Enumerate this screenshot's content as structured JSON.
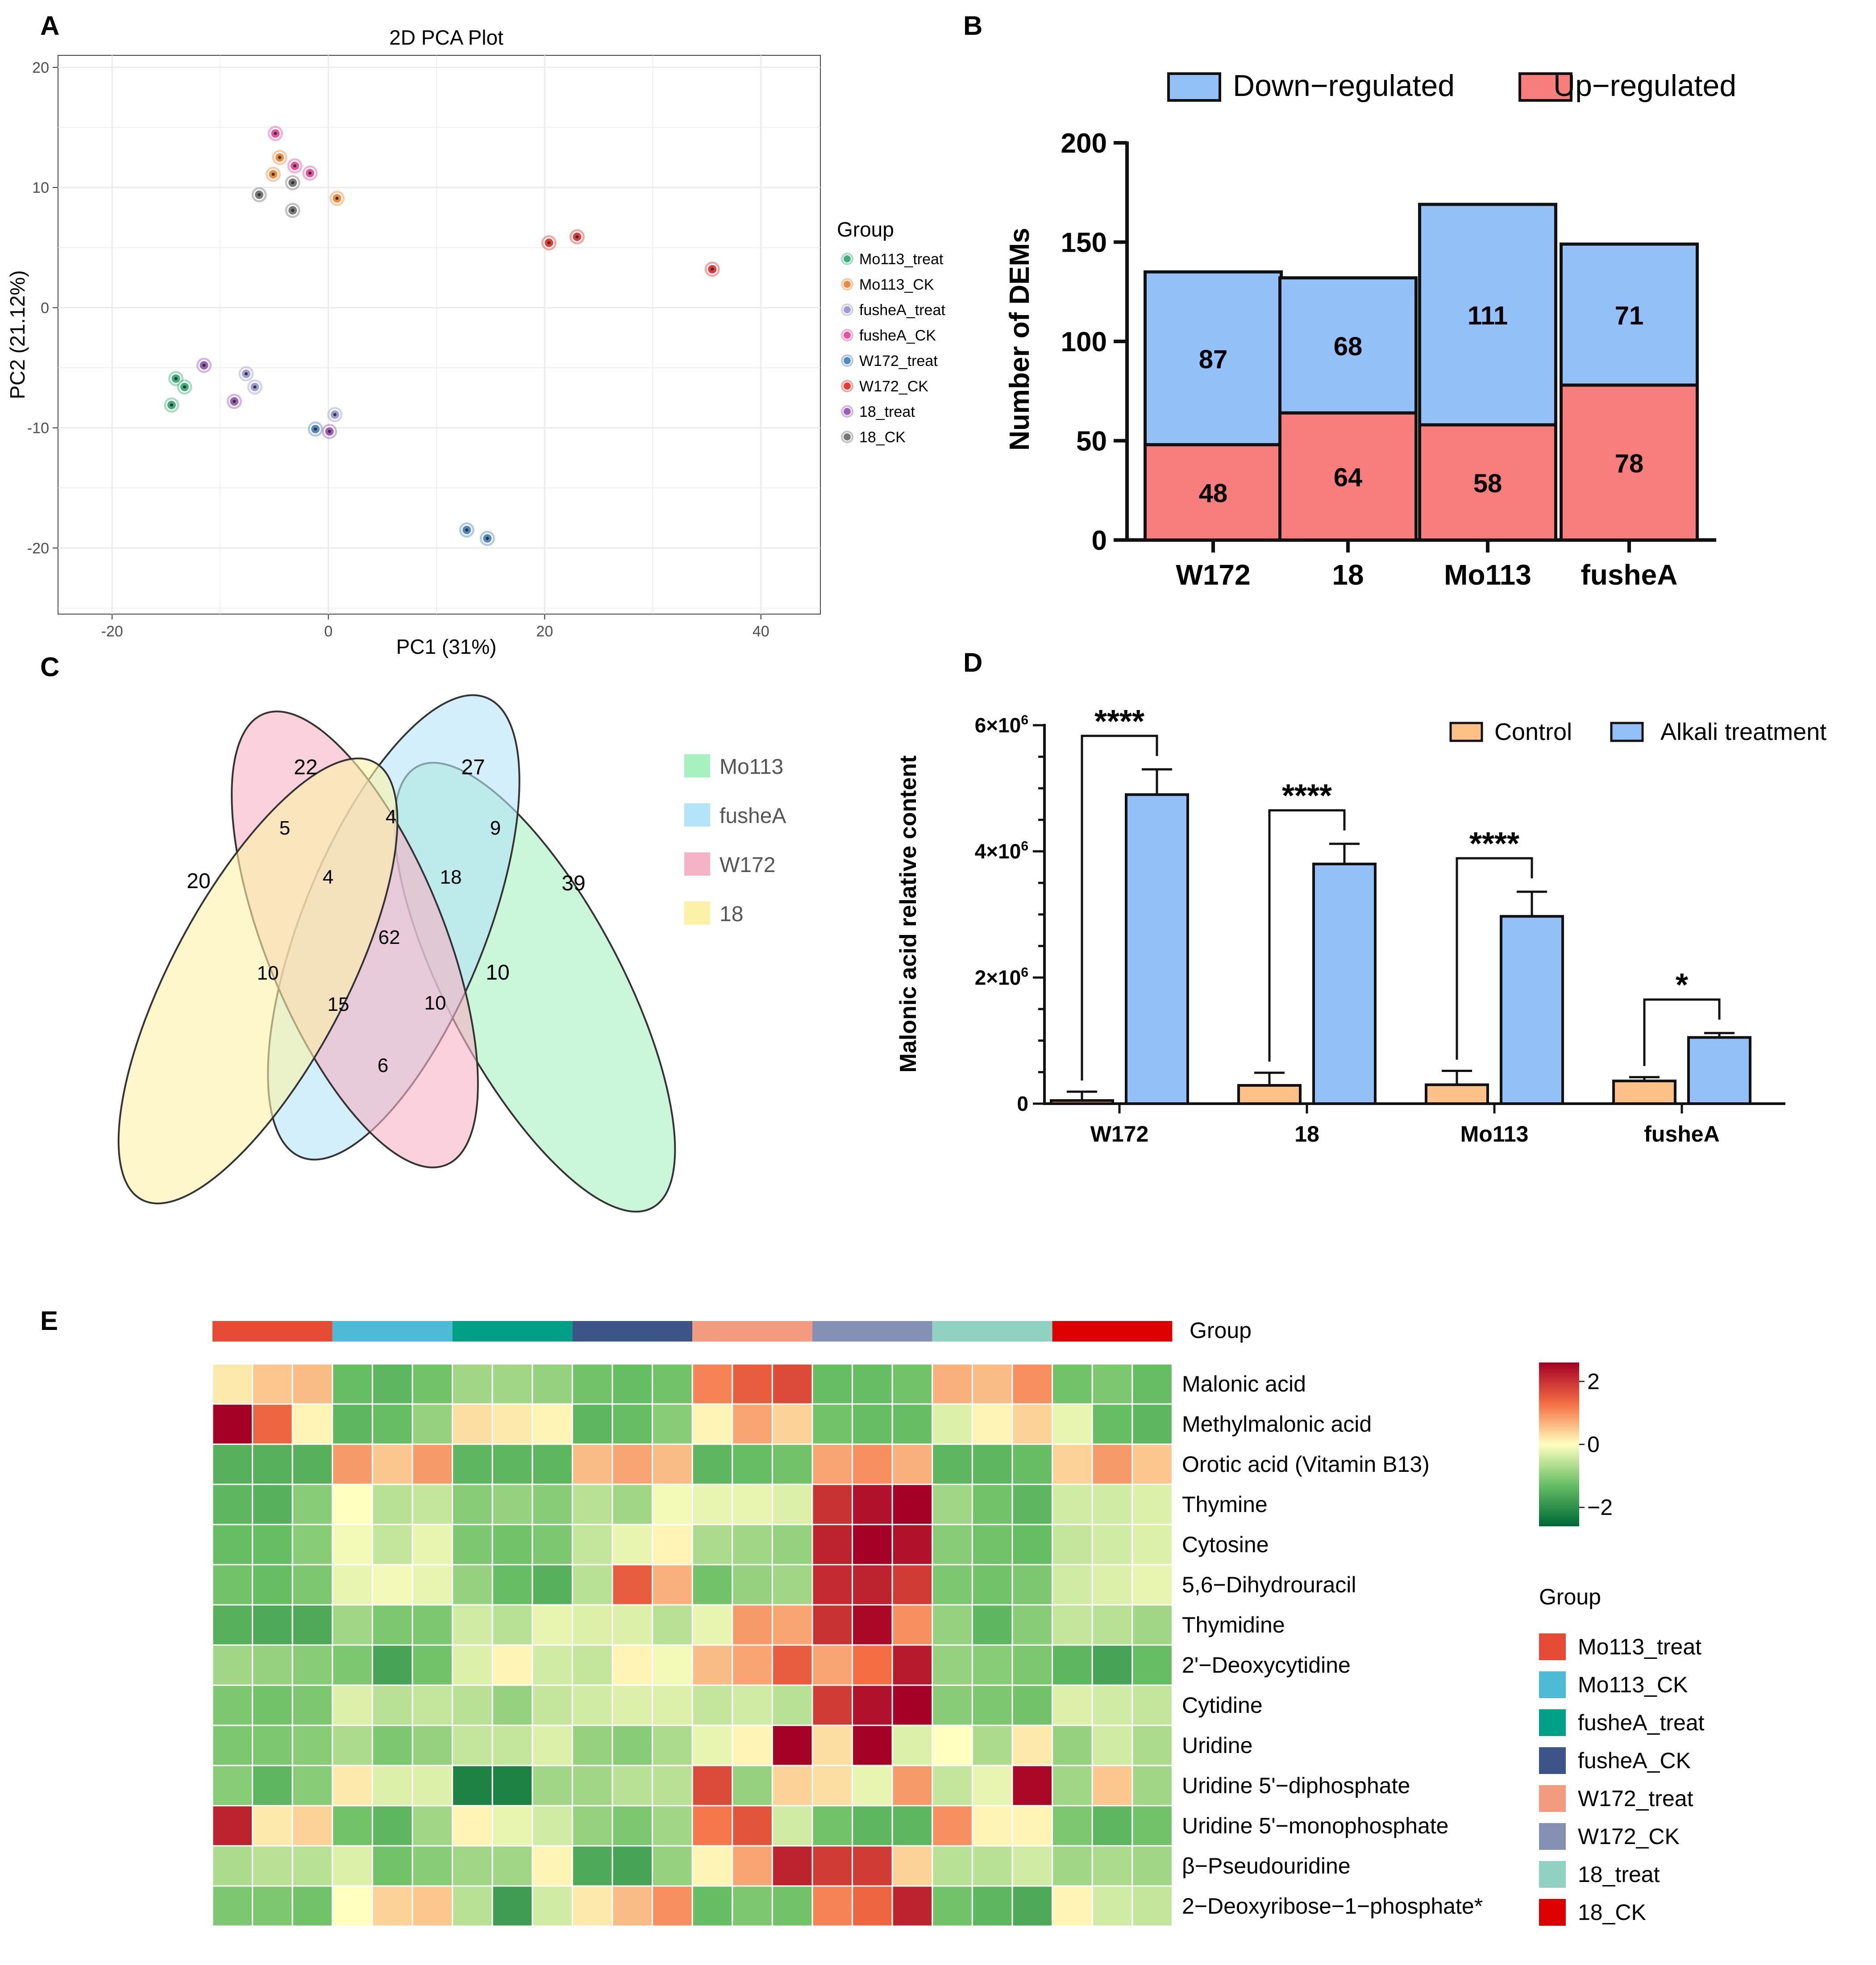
{
  "panel_labels": {
    "a": "A",
    "b": "B",
    "c": "C",
    "d": "D",
    "e": "E"
  },
  "chart_data": [
    {
      "id": "A",
      "type": "scatter",
      "title": "2D PCA Plot",
      "xlabel": "PC1 (31%)",
      "ylabel": "PC2 (21.12%)",
      "xlim": [
        -25,
        45.5
      ],
      "ylim": [
        -25.5,
        21
      ],
      "xticks": [
        -20,
        0,
        20,
        40
      ],
      "yticks": [
        -20,
        -10,
        0,
        10,
        20
      ],
      "grid": true,
      "legend_title": "Group",
      "legend_position": "right",
      "series": [
        {
          "name": "Mo113_treat",
          "color": "#3dae7c",
          "points": [
            [
              -14.1,
              -5.9
            ],
            [
              -13.3,
              -6.6
            ],
            [
              -14.5,
              -8.1
            ]
          ]
        },
        {
          "name": "Mo113_CK",
          "color": "#ef8a3c",
          "points": [
            [
              -4.5,
              12.5
            ],
            [
              -5.1,
              11.1
            ],
            [
              0.8,
              9.1
            ]
          ]
        },
        {
          "name": "fusheA_treat",
          "color": "#9d9ad6",
          "points": [
            [
              -7.6,
              -5.5
            ],
            [
              -6.8,
              -6.6
            ],
            [
              0.6,
              -8.9
            ]
          ]
        },
        {
          "name": "fusheA_CK",
          "color": "#e9529b",
          "points": [
            [
              -4.9,
              14.5
            ],
            [
              -3.1,
              11.8
            ],
            [
              -1.7,
              11.2
            ]
          ]
        },
        {
          "name": "W172_treat",
          "color": "#4e89c2",
          "points": [
            [
              -1.2,
              -10.1
            ],
            [
              12.8,
              -18.5
            ],
            [
              14.7,
              -19.2
            ]
          ]
        },
        {
          "name": "W172_CK",
          "color": "#e33b34",
          "points": [
            [
              20.4,
              5.4
            ],
            [
              23.0,
              5.9
            ],
            [
              35.5,
              3.2
            ]
          ]
        },
        {
          "name": "18_treat",
          "color": "#9b5db8",
          "points": [
            [
              -11.5,
              -4.8
            ],
            [
              -8.7,
              -7.8
            ],
            [
              0.1,
              -10.3
            ]
          ]
        },
        {
          "name": "18_CK",
          "color": "#777777",
          "points": [
            [
              -6.4,
              9.4
            ],
            [
              -3.3,
              10.4
            ],
            [
              -3.3,
              8.1
            ]
          ]
        }
      ]
    },
    {
      "id": "B",
      "type": "bar",
      "stacked": true,
      "ylabel": "Number of DEMs",
      "ylim": [
        0,
        200
      ],
      "yticks": [
        0,
        50,
        100,
        150,
        200
      ],
      "categories": [
        "W172",
        "18",
        "Mo113",
        "fusheA"
      ],
      "legend_position": "top",
      "series": [
        {
          "name": "Up−regulated",
          "color": "#f87e7e",
          "values": [
            48,
            64,
            58,
            78
          ]
        },
        {
          "name": "Down−regulated",
          "color": "#93c0f7",
          "values": [
            87,
            68,
            111,
            71
          ]
        }
      ],
      "legend_order": [
        "Down−regulated",
        "Up−regulated"
      ]
    },
    {
      "id": "C",
      "type": "venn",
      "sets": [
        {
          "name": "Mo113",
          "color": "#a7f0c0"
        },
        {
          "name": "fusheA",
          "color": "#b4e4f8"
        },
        {
          "name": "W172",
          "color": "#f6b3c7"
        },
        {
          "name": "18",
          "color": "#fbf2a8"
        }
      ],
      "regions": [
        {
          "sets": [
            "18"
          ],
          "value": 20
        },
        {
          "sets": [
            "W172"
          ],
          "value": 22
        },
        {
          "sets": [
            "fusheA"
          ],
          "value": 27
        },
        {
          "sets": [
            "Mo113"
          ],
          "value": 39
        },
        {
          "sets": [
            "18",
            "W172"
          ],
          "value": 5
        },
        {
          "sets": [
            "W172",
            "fusheA"
          ],
          "value": 4
        },
        {
          "sets": [
            "fusheA",
            "Mo113"
          ],
          "value": 9
        },
        {
          "sets": [
            "18",
            "W172",
            "fusheA"
          ],
          "value": 4
        },
        {
          "sets": [
            "W172",
            "fusheA",
            "Mo113"
          ],
          "value": 18
        },
        {
          "sets": [
            "18",
            "W172",
            "fusheA",
            "Mo113"
          ],
          "value": 62
        },
        {
          "sets": [
            "18",
            "fusheA"
          ],
          "value": 10
        },
        {
          "sets": [
            "W172",
            "Mo113"
          ],
          "value": 10
        },
        {
          "sets": [
            "18",
            "fusheA",
            "Mo113"
          ],
          "value": 15
        },
        {
          "sets": [
            "18",
            "W172",
            "Mo113"
          ],
          "value": 10
        },
        {
          "sets": [
            "18",
            "Mo113"
          ],
          "value": 6
        }
      ]
    },
    {
      "id": "D",
      "type": "bar",
      "grouped": true,
      "ylabel": "Malonic acid relative content",
      "ylim": [
        0,
        6000000
      ],
      "ytick_labels": [
        {
          "value": 0,
          "base": "0",
          "exp": ""
        },
        {
          "value": 2000000,
          "base": "2×10",
          "exp": "6"
        },
        {
          "value": 4000000,
          "base": "4×10",
          "exp": "6"
        },
        {
          "value": 6000000,
          "base": "6×10",
          "exp": "6"
        }
      ],
      "categories": [
        "W172",
        "18",
        "Mo113",
        "fusheA"
      ],
      "legend_position": "top-right",
      "series": [
        {
          "name": "Control",
          "color": "#fdc187",
          "values": [
            50000,
            290000,
            300000,
            360000
          ],
          "errors": [
            140000,
            200000,
            220000,
            60000
          ]
        },
        {
          "name": "Alkali treatment",
          "color": "#93c0f7",
          "values": [
            4900000,
            3800000,
            2970000,
            1050000
          ],
          "errors": [
            400000,
            320000,
            390000,
            70000
          ]
        }
      ],
      "significance": [
        "****",
        "****",
        "****",
        "*"
      ]
    },
    {
      "id": "E",
      "type": "heatmap",
      "legend_title": "Group",
      "colorbar_ticks": [
        {
          "value": 2,
          "label": "2"
        },
        {
          "value": 0,
          "label": "0"
        },
        {
          "value": -2,
          "label": "−2"
        }
      ],
      "color_range": [
        -2.6,
        2.6
      ],
      "groups": [
        {
          "name": "Mo113_treat",
          "color": "#e64b35"
        },
        {
          "name": "Mo113_CK",
          "color": "#4dbbd5"
        },
        {
          "name": "fusheA_treat",
          "color": "#00a087"
        },
        {
          "name": "fusheA_CK",
          "color": "#3c5488"
        },
        {
          "name": "W172_treat",
          "color": "#f39b7f"
        },
        {
          "name": "W172_CK",
          "color": "#8491b4"
        },
        {
          "name": "18_treat",
          "color": "#91d1c2"
        },
        {
          "name": "18_CK",
          "color": "#dc0000"
        }
      ],
      "rows": [
        "Malonic acid",
        "Methylmalonic acid",
        "Orotic acid (Vitamin B13)",
        "Thymine",
        "Cytosine",
        "5,6−Dihydrouracil",
        "Thymidine",
        "2'−Deoxycytidine",
        "Cytidine",
        "Uridine",
        "Uridine 5'−diphosphate",
        "Uridine 5'−monophosphate",
        "β−Pseudouridine",
        "2−Deoxyribose−1−phosphate*"
      ],
      "values": [
        [
          0.2,
          0.5,
          0.6,
          -1.3,
          -1.4,
          -1.2,
          -0.8,
          -0.8,
          -0.9,
          -1.2,
          -1.3,
          -1.2,
          1.1,
          1.5,
          1.7,
          -1.3,
          -1.3,
          -1.2,
          0.7,
          0.6,
          1.0,
          -1.2,
          -1.1,
          -1.3
        ],
        [
          2.6,
          1.4,
          0.1,
          -1.4,
          -1.3,
          -0.9,
          0.3,
          0.2,
          0.1,
          -1.4,
          -1.3,
          -1.0,
          0.1,
          0.8,
          0.4,
          -1.2,
          -1.3,
          -1.3,
          -0.3,
          0.1,
          0.4,
          -0.2,
          -1.3,
          -1.4
        ],
        [
          -1.5,
          -1.5,
          -1.5,
          0.9,
          0.5,
          0.9,
          -1.4,
          -1.4,
          -1.4,
          0.6,
          0.8,
          0.6,
          -1.4,
          -1.3,
          -1.2,
          0.8,
          1.0,
          0.7,
          -1.4,
          -1.4,
          -1.3,
          0.4,
          0.9,
          0.5
        ],
        [
          -1.4,
          -1.5,
          -1.0,
          0.0,
          -0.6,
          -0.5,
          -1.0,
          -0.9,
          -1.0,
          -0.6,
          -0.8,
          -0.1,
          -0.2,
          -0.2,
          -0.3,
          2.0,
          2.4,
          2.6,
          -0.8,
          -1.2,
          -1.4,
          -0.4,
          -0.4,
          -0.3
        ],
        [
          -1.3,
          -1.3,
          -1.0,
          -0.1,
          -0.5,
          -0.2,
          -1.1,
          -1.2,
          -1.1,
          -0.5,
          -0.2,
          0.1,
          -0.7,
          -0.8,
          -0.9,
          2.2,
          2.6,
          2.4,
          -1.0,
          -1.2,
          -1.3,
          -0.5,
          -0.4,
          -0.3
        ],
        [
          -1.2,
          -1.3,
          -1.1,
          -0.2,
          -0.1,
          -0.2,
          -0.9,
          -1.3,
          -1.5,
          -0.6,
          1.5,
          0.7,
          -1.2,
          -0.9,
          -0.8,
          2.1,
          2.2,
          1.9,
          -1.1,
          -1.2,
          -1.1,
          -0.4,
          -0.3,
          -0.2
        ],
        [
          -1.5,
          -1.6,
          -1.6,
          -0.8,
          -1.1,
          -1.1,
          -0.4,
          -0.6,
          -0.2,
          -0.3,
          -0.3,
          -0.6,
          -0.2,
          0.9,
          0.8,
          2.0,
          2.5,
          1.0,
          -0.9,
          -1.4,
          -1.0,
          -0.5,
          -0.6,
          -0.8
        ],
        [
          -0.8,
          -0.9,
          -1.0,
          -1.1,
          -1.7,
          -1.2,
          -0.3,
          0.1,
          -0.4,
          -0.5,
          0.1,
          -0.1,
          0.6,
          0.8,
          1.5,
          0.8,
          1.3,
          2.3,
          -0.9,
          -1.0,
          -1.1,
          -1.4,
          -1.7,
          -1.3
        ],
        [
          -1.1,
          -1.2,
          -1.1,
          -0.3,
          -0.6,
          -0.5,
          -0.6,
          -0.9,
          -0.5,
          -0.4,
          -0.3,
          -0.3,
          -0.5,
          -0.4,
          -0.6,
          1.9,
          2.4,
          2.8,
          -1.0,
          -1.1,
          -1.2,
          -0.3,
          -0.4,
          -0.5
        ],
        [
          -1.1,
          -1.1,
          -1.0,
          -0.7,
          -1.1,
          -0.9,
          -0.5,
          -0.5,
          -0.3,
          -0.9,
          -1.0,
          -0.7,
          -0.2,
          0.1,
          2.8,
          0.3,
          2.8,
          -0.3,
          0.0,
          -0.7,
          0.2,
          -0.9,
          -0.4,
          -0.7
        ],
        [
          -1.0,
          -1.4,
          -1.0,
          0.2,
          -0.3,
          -0.3,
          -2.2,
          -2.2,
          -0.8,
          -0.8,
          -0.6,
          -0.6,
          1.7,
          -0.9,
          0.4,
          0.3,
          -0.2,
          0.9,
          -0.5,
          -0.2,
          2.5,
          -0.8,
          0.5,
          -0.8
        ],
        [
          2.2,
          0.2,
          0.4,
          -1.2,
          -1.4,
          -0.8,
          0.1,
          -0.2,
          -0.4,
          -0.9,
          -1.1,
          -0.8,
          1.2,
          1.6,
          -0.4,
          -1.2,
          -1.4,
          -1.4,
          1.0,
          0.1,
          0.1,
          -1.1,
          -1.4,
          -1.2
        ],
        [
          -0.7,
          -0.6,
          -0.6,
          -0.3,
          -1.2,
          -1.0,
          -0.8,
          -0.8,
          0.1,
          -1.6,
          -1.7,
          -0.9,
          0.1,
          0.8,
          2.2,
          1.9,
          1.9,
          0.4,
          -0.6,
          -0.6,
          -0.4,
          -0.8,
          -0.7,
          -0.8
        ],
        [
          -1.1,
          -1.1,
          -1.2,
          0.0,
          0.4,
          0.5,
          -0.6,
          -1.8,
          -0.4,
          0.2,
          0.6,
          1.0,
          -1.3,
          -1.1,
          -1.2,
          1.1,
          1.4,
          2.2,
          -1.2,
          -1.4,
          -1.6,
          0.1,
          -0.4,
          -0.5
        ]
      ]
    }
  ]
}
